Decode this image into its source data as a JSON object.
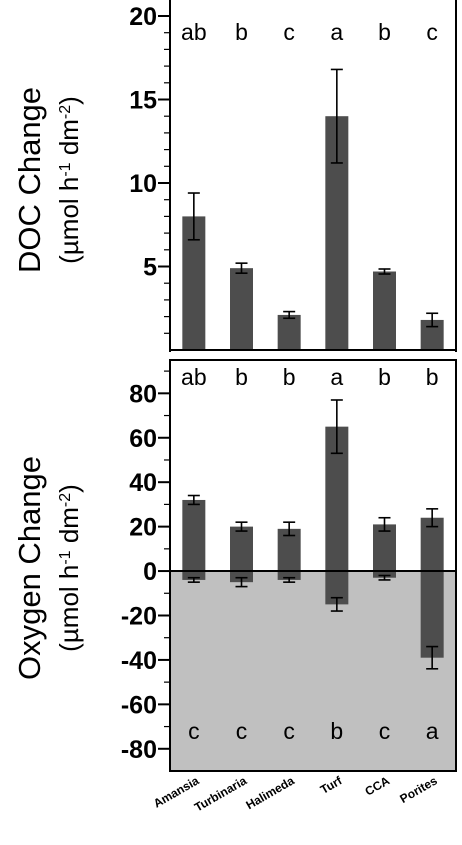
{
  "colors": {
    "bar": "#4d4d4d",
    "negative_region": "#c0c0c0",
    "axis": "#000000",
    "background": "#ffffff"
  },
  "chart_data": [
    {
      "type": "bar",
      "title": "",
      "ylabel_line1": "DOC Change",
      "ylabel_line2": {
        "prefix": "(µmol h",
        "exp1": "-1",
        "mid": " dm",
        "exp2": "-2",
        "suffix": ")"
      },
      "xlabel": "",
      "categories": [
        "Amansia",
        "Turbinaria",
        "Halimeda",
        "Turf",
        "CCA",
        "Porites"
      ],
      "values": [
        8.0,
        4.9,
        2.1,
        14.0,
        4.7,
        1.8
      ],
      "errors": [
        1.4,
        0.3,
        0.2,
        2.8,
        0.15,
        0.4
      ],
      "ylim": [
        0,
        20
      ],
      "yticks": [
        5,
        10,
        15,
        20
      ],
      "minor_yticks": [
        1,
        2,
        3,
        4,
        6,
        7,
        8,
        9,
        11,
        12,
        13,
        14,
        16,
        17,
        18,
        19
      ],
      "significance_letters": [
        "ab",
        "b",
        "c",
        "a",
        "b",
        "c"
      ],
      "grid": false
    },
    {
      "type": "bar",
      "title": "",
      "ylabel_line1": "Oxygen Change",
      "ylabel_line2": {
        "prefix": "(µmol h",
        "exp1": "-1",
        "mid": " dm",
        "exp2": "-2",
        "suffix": ")"
      },
      "xlabel": "",
      "categories": [
        "Amansia",
        "Turbinaria",
        "Halimeda",
        "Turf",
        "CCA",
        "Porites"
      ],
      "series": [
        {
          "values": [
            32,
            20,
            19,
            65,
            21,
            24
          ],
          "errors": [
            2,
            2,
            3,
            12,
            3,
            4
          ]
        },
        {
          "values": [
            -4,
            -5,
            -4,
            -15,
            -3,
            -39
          ],
          "errors": [
            1,
            2,
            1,
            3,
            1,
            5
          ]
        }
      ],
      "ylim": [
        -90,
        95
      ],
      "yticks": [
        -80,
        -60,
        -40,
        -20,
        0,
        20,
        40,
        60,
        80
      ],
      "minor_yticks": [
        -70,
        -50,
        -30,
        -10,
        10,
        30,
        50,
        70,
        90
      ],
      "significance_letters_top": [
        "ab",
        "b",
        "b",
        "a",
        "b",
        "b"
      ],
      "significance_letters_bottom": [
        "c",
        "c",
        "c",
        "b",
        "c",
        "a"
      ],
      "grid": false
    }
  ]
}
